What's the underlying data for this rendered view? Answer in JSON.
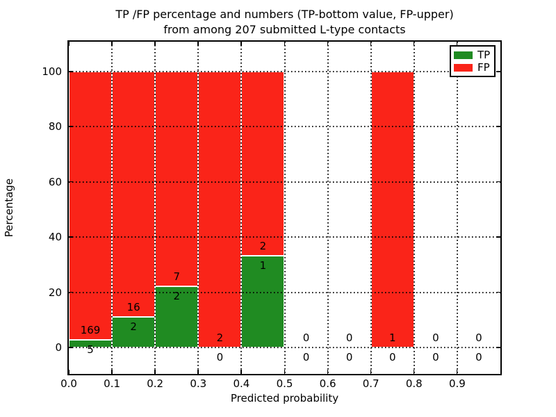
{
  "chart_data": {
    "type": "bar",
    "stacked": true,
    "title": "TP /FP percentage and numbers (TP-bottom value, FP-upper)\nfrom among 207 submitted L-type contacts",
    "xlabel": "Predicted probability",
    "ylabel": "Percentage",
    "total_submitted": 207,
    "bin_width": 0.1,
    "bins_start": [
      0.0,
      0.1,
      0.2,
      0.3,
      0.4,
      0.5,
      0.6,
      0.7,
      0.8,
      0.9
    ],
    "x_tick_labels": [
      "0.0",
      "0.1",
      "0.2",
      "0.3",
      "0.4",
      "0.5",
      "0.6",
      "0.7",
      "0.8",
      "0.9"
    ],
    "y_ticks": [
      0,
      20,
      40,
      60,
      80,
      100
    ],
    "xlim": [
      0.0,
      1.0
    ],
    "ylim": [
      -10,
      110
    ],
    "series": [
      {
        "name": "TP",
        "color": "#208b22",
        "values": [
          5,
          2,
          2,
          0,
          1,
          0,
          0,
          0,
          0,
          0
        ]
      },
      {
        "name": "FP",
        "color": "#fa2419",
        "values": [
          169,
          16,
          7,
          2,
          2,
          0,
          0,
          1,
          0,
          0
        ]
      }
    ],
    "tp_percent_of_bin": [
      2.9,
      11.1,
      22.2,
      0.0,
      33.3,
      null,
      null,
      0.0,
      null,
      null
    ],
    "grid": "dotted black, drawn above bars",
    "legend": {
      "position": "upper-right",
      "entries": [
        "TP",
        "FP"
      ]
    }
  }
}
